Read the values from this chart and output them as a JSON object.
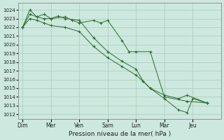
{
  "background_color": "#cce8df",
  "grid_color": "#aaccbb",
  "line_color": "#2d6b2d",
  "marker_color": "#2d6b2d",
  "xlabel": "Pression niveau de la mer( hPa )",
  "ylim": [
    1011.5,
    1024.8
  ],
  "yticks": [
    1012,
    1013,
    1014,
    1015,
    1016,
    1017,
    1018,
    1019,
    1020,
    1021,
    1022,
    1023,
    1024
  ],
  "xtick_labels": [
    "Dim",
    "Mer",
    "Ven",
    "Sam",
    "Lun",
    "Mar",
    "Jeu"
  ],
  "xtick_positions": [
    0,
    1,
    2,
    3,
    4,
    5,
    6
  ],
  "xlim": [
    -0.15,
    7.0
  ],
  "series": [
    {
      "x": [
        0.0,
        0.25,
        0.5,
        0.75,
        1.0,
        1.5,
        1.75,
        2.0,
        2.5,
        2.75,
        3.0,
        3.5,
        3.75,
        4.0,
        4.5,
        5.0,
        5.8,
        6.5
      ],
      "y": [
        1022.0,
        1024.0,
        1023.2,
        1023.5,
        1023.0,
        1023.2,
        1022.8,
        1022.5,
        1022.8,
        1022.5,
        1022.8,
        1020.5,
        1019.2,
        1019.2,
        1019.2,
        1014.0,
        1013.5,
        1013.3
      ]
    },
    {
      "x": [
        0.0,
        0.25,
        0.5,
        0.75,
        1.0,
        1.25,
        1.5,
        2.0,
        2.5,
        3.0,
        3.5,
        4.0,
        4.25,
        4.5,
        5.0,
        5.5,
        5.8,
        6.5
      ],
      "y": [
        1022.0,
        1023.5,
        1023.2,
        1023.0,
        1023.0,
        1023.3,
        1023.0,
        1022.8,
        1020.8,
        1019.2,
        1018.1,
        1017.2,
        1015.8,
        1015.0,
        1014.2,
        1013.8,
        1014.2,
        1013.3
      ]
    },
    {
      "x": [
        0.0,
        0.25,
        0.5,
        0.75,
        1.0,
        1.5,
        2.0,
        2.5,
        3.0,
        3.5,
        4.0,
        4.25,
        4.5,
        5.0,
        5.5,
        5.8,
        6.0,
        6.5
      ],
      "y": [
        1022.0,
        1023.0,
        1022.8,
        1022.5,
        1022.2,
        1022.0,
        1021.5,
        1019.8,
        1018.5,
        1017.5,
        1016.5,
        1015.8,
        1015.0,
        1013.8,
        1012.5,
        1012.2,
        1013.8,
        1013.3
      ]
    }
  ]
}
